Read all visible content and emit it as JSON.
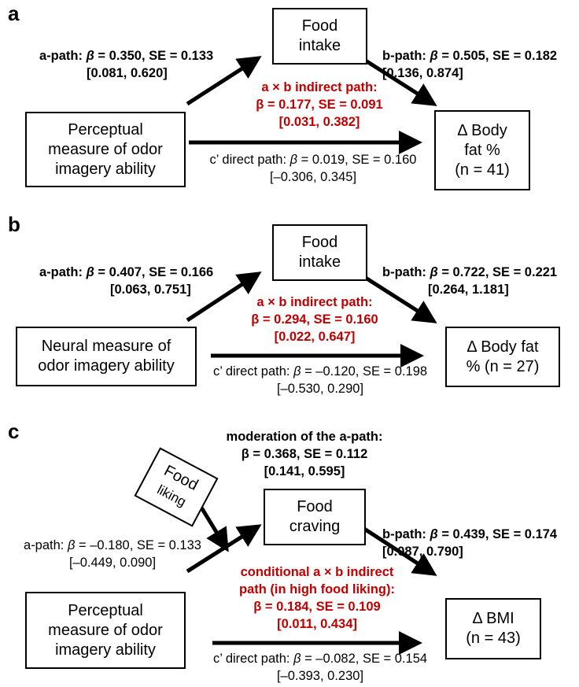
{
  "panels": [
    {
      "label": "a",
      "mediator": [
        "Food",
        "intake"
      ],
      "predictor": [
        "Perceptual",
        "measure of odor",
        "imagery ability"
      ],
      "outcome": [
        "Δ Body",
        "fat %",
        "(n = 41)"
      ],
      "a_path": {
        "name": "a-path: ",
        "beta": "β",
        "rest": " = 0.350, SE = 0.133",
        "ci": "[0.081, 0.620]"
      },
      "b_path": {
        "name": "b-path: ",
        "beta": "β",
        "rest": " = 0.505, SE = 0.182",
        "ci": "[0.136, 0.874]"
      },
      "indirect": [
        "a × b indirect path:",
        "β = 0.177, SE = 0.091",
        "[0.031, 0.382]"
      ],
      "direct": {
        "name": "c’ direct path: ",
        "beta": "β",
        "rest": " = 0.019, SE = 0.160",
        "ci": "[–0.306, 0.345]"
      }
    },
    {
      "label": "b",
      "mediator": [
        "Food",
        "intake"
      ],
      "predictor": [
        "Neural measure of",
        "odor imagery ability"
      ],
      "outcome": [
        "Δ Body fat",
        "% (n = 27)"
      ],
      "a_path": {
        "name": "a-path: ",
        "beta": "β",
        "rest": " = 0.407, SE = 0.166",
        "ci": "[0.063, 0.751]"
      },
      "b_path": {
        "name": "b-path: ",
        "beta": "β",
        "rest": " = 0.722, SE = 0.221",
        "ci": "[0.264, 1.181]"
      },
      "indirect": [
        "a × b indirect path:",
        "β = 0.294, SE = 0.160",
        "[0.022, 0.647]"
      ],
      "direct": {
        "name": "c’ direct path: ",
        "beta": "β",
        "rest": " = –0.120, SE = 0.198",
        "ci": "[–0.530, 0.290]"
      }
    },
    {
      "label": "c",
      "moderator": [
        "Food",
        "liking"
      ],
      "moderation": [
        "moderation of the a-path:",
        "β = 0.368, SE = 0.112",
        "[0.141, 0.595]"
      ],
      "mediator": [
        "Food",
        "craving"
      ],
      "predictor": [
        "Perceptual",
        "measure of odor",
        "imagery ability"
      ],
      "outcome": [
        "Δ BMI",
        "(n = 43)"
      ],
      "a_path": {
        "name": "a-path: ",
        "beta": "β",
        "rest": " = –0.180, SE = 0.133",
        "ci": "[–0.449, 0.090]"
      },
      "b_path": {
        "name": "b-path: ",
        "beta": "β",
        "rest": " = 0.439, SE = 0.174",
        "ci": "[0.087, 0.790]"
      },
      "indirect": [
        "conditional a × b indirect",
        "path (in high food liking):",
        "β = 0.184, SE = 0.109",
        "[0.011, 0.434]"
      ],
      "direct": {
        "name": "c’ direct path: ",
        "beta": "β",
        "rest": " = –0.082, SE = 0.154",
        "ci": "[–0.393, 0.230]"
      }
    }
  ],
  "colors": {
    "indirect_text": "#c00000",
    "lines": "#000000"
  }
}
